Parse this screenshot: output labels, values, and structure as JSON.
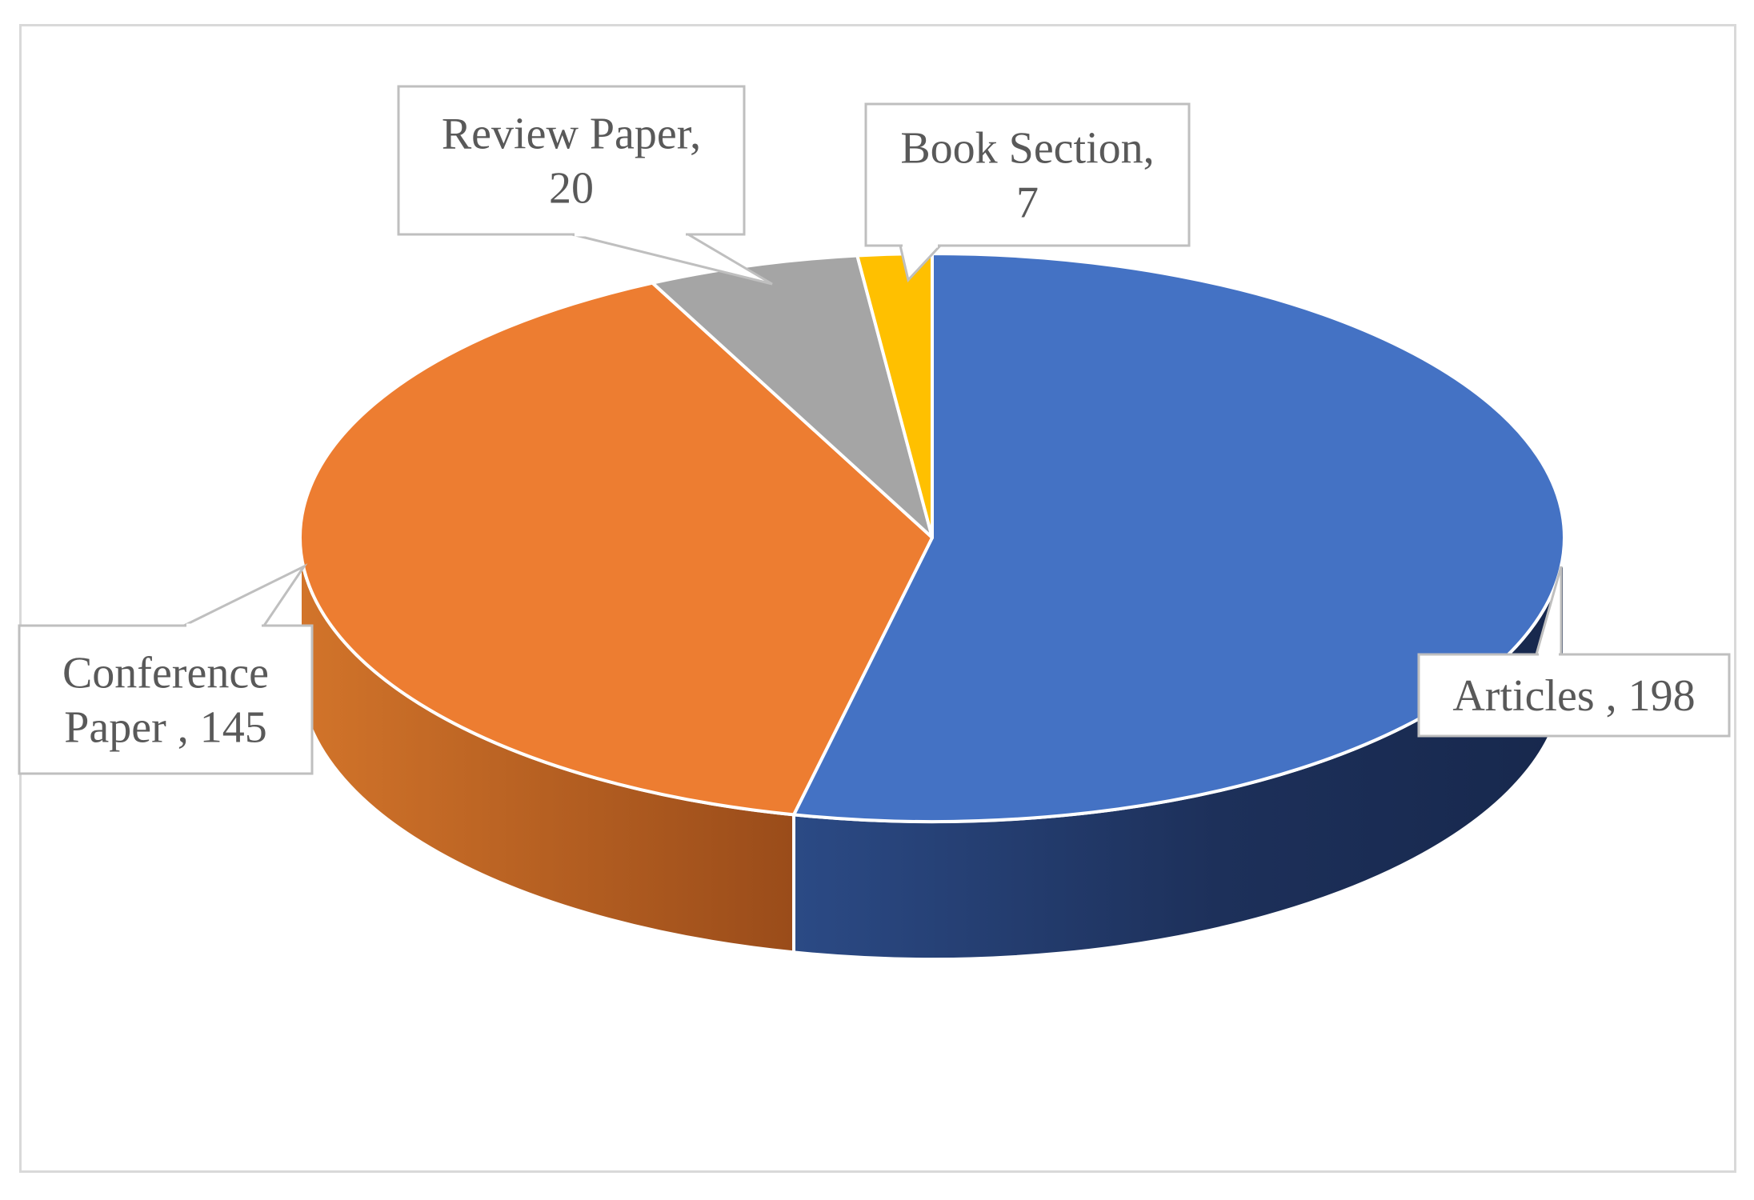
{
  "chart_data": {
    "type": "pie",
    "style": "3d",
    "title": "",
    "labels": [
      "Articles",
      "Conference Paper",
      "Review Paper",
      "Book Section"
    ],
    "values": [
      198,
      145,
      20,
      7
    ],
    "colors": [
      "#4472c4",
      "#ed7d31",
      "#a5a5a5",
      "#ffc000"
    ],
    "side_colors": [
      "#1f3864",
      "#b35a1f",
      "#7f7f7f",
      "#bf9000"
    ],
    "data_labels": [
      {
        "line1": "Articles , 198",
        "line2": ""
      },
      {
        "line1": "Conference",
        "line2": "Paper , 145"
      },
      {
        "line1": "Review Paper,",
        "line2": "20"
      },
      {
        "line1": "Book Section,",
        "line2": "7"
      }
    ],
    "start_angle_deg": 0,
    "direction": "clockwise"
  }
}
